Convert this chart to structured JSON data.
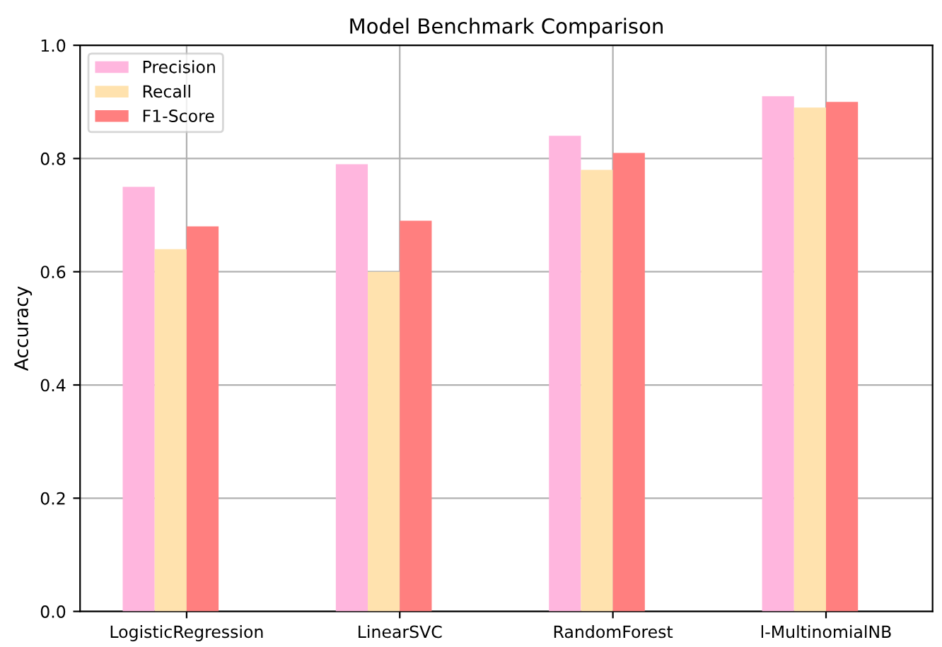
{
  "chart_data": {
    "type": "bar",
    "title": "Model Benchmark Comparison",
    "ylabel": "Accuracy",
    "categories": [
      "LogisticRegression",
      "LinearSVC",
      "RandomForest",
      "l-MultinomialNB"
    ],
    "series": [
      {
        "name": "Precision",
        "color": "#ffb6de",
        "values": [
          0.75,
          0.79,
          0.84,
          0.91
        ]
      },
      {
        "name": "Recall",
        "color": "#ffe2ae",
        "values": [
          0.64,
          0.6,
          0.78,
          0.89
        ]
      },
      {
        "name": "F1-Score",
        "color": "#ff7f7f",
        "values": [
          0.68,
          0.69,
          0.81,
          0.9
        ]
      }
    ],
    "ylim": [
      0,
      1
    ],
    "yticks": [
      {
        "value": 0,
        "label": "0.0"
      },
      {
        "value": 0.2,
        "label": "0.2"
      },
      {
        "value": 0.4,
        "label": "0.4"
      },
      {
        "value": 0.6,
        "label": "0.6"
      },
      {
        "value": 0.8,
        "label": "0.8"
      },
      {
        "value": 1,
        "label": "1.0"
      }
    ],
    "grid": true,
    "legend": "top left"
  }
}
